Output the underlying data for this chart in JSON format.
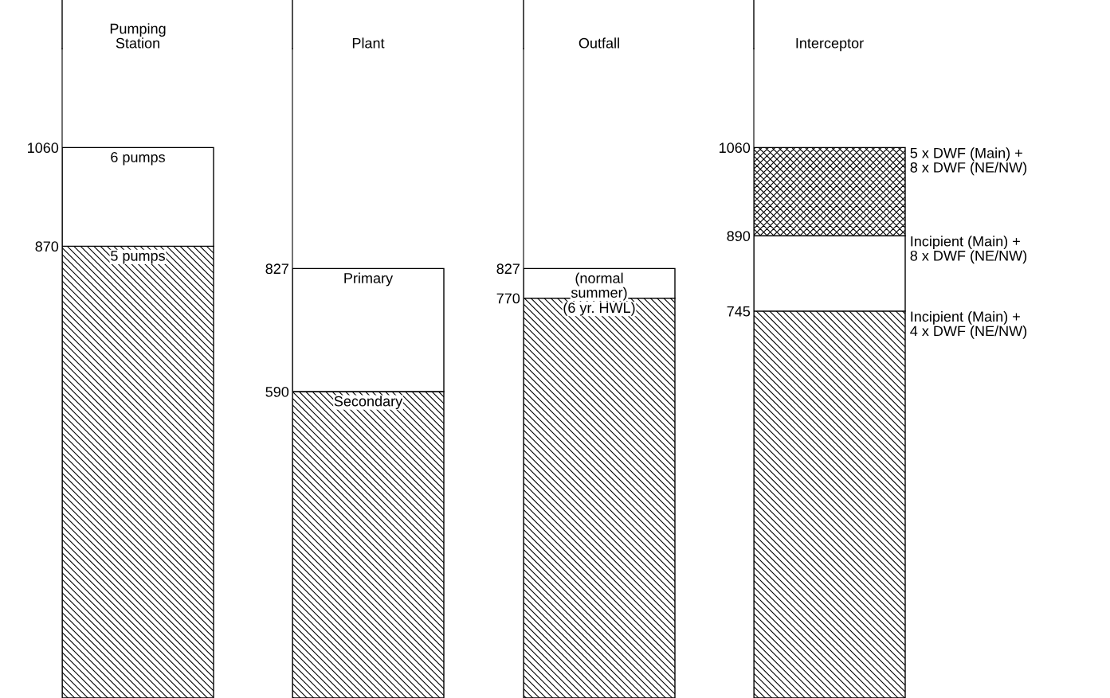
{
  "chart_data": [
    {
      "type": "bar",
      "stacked": true,
      "categories": [
        "Pumping\nStation"
      ],
      "series": [
        {
          "color": "#000000",
          "values": [
            870
          ]
        },
        {
          "color": "#ffffff",
          "values": [
            190
          ]
        }
      ],
      "ylim": [
        0,
        1250
      ],
      "yticks": [
        870,
        1060
      ],
      "annotations": [
        {
          "text": "6 pumps",
          "x": "Pumping\nStation",
          "y": 1060
        },
        {
          "text": "5 pumps",
          "x": "Pumping\nStation",
          "y": 870
        }
      ]
    },
    {
      "type": "bar",
      "stacked": true,
      "categories": [
        "Plant"
      ],
      "series": [
        {
          "color": "#000000",
          "values": [
            590
          ]
        },
        {
          "color": "#ffffff",
          "values": [
            237
          ]
        }
      ],
      "ylim": [
        0,
        1250
      ],
      "yticks": [
        590,
        827
      ],
      "annotations": [
        {
          "text": "Primary",
          "x": "Plant",
          "y": 827
        },
        {
          "text": "Secondary",
          "x": "Plant",
          "y": 590
        }
      ]
    },
    {
      "type": "bar",
      "stacked": true,
      "categories": [
        "Outfall"
      ],
      "series": [
        {
          "color": "#000000",
          "values": [
            770
          ]
        },
        {
          "color": "#ffffff",
          "values": [
            57
          ]
        }
      ],
      "ylim": [
        0,
        1250
      ],
      "yticks": [
        770,
        827
      ],
      "annotations": [
        {
          "text": "(normal\nsummer)",
          "x": "Outfall",
          "y": 827
        },
        {
          "text": "(6 yr. HWL)",
          "x": "Outfall",
          "y": 770
        }
      ]
    },
    {
      "type": "bar",
      "stacked": true,
      "categories": [
        "Interceptor"
      ],
      "series": [
        {
          "color": "#000000",
          "values": [
            745
          ]
        },
        {
          "color": "#ffffff",
          "values": [
            145
          ]
        },
        {
          "color": "#000000",
          "values": [
            170
          ]
        }
      ],
      "ylim": [
        0,
        1250
      ],
      "yticks": [
        745,
        890,
        1060
      ],
      "annotations": [
        "5 x DWF (Main) +\n8 x DWF (NE/NW)",
        "Incipient (Main) +\n8 x DWF (NE/NW)",
        "Incipient (Main) +\n4 x DWF (NE/NW)"
      ]
    }
  ]
}
